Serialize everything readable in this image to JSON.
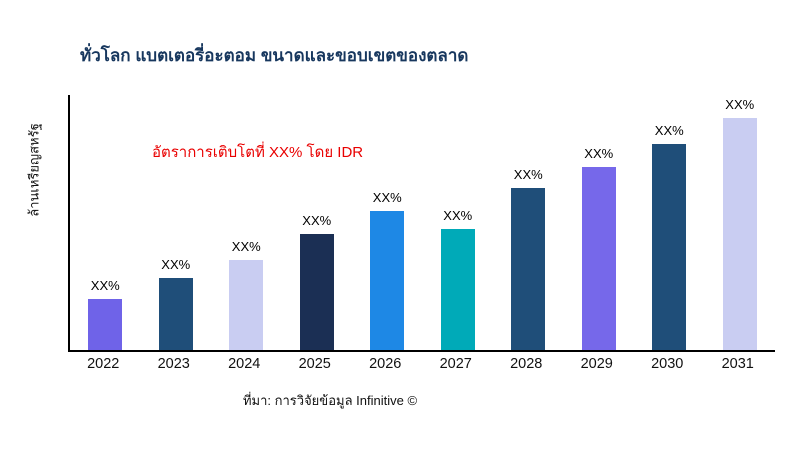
{
  "chart_data": {
    "type": "bar",
    "title": "ทั่วโลก แบตเตอรี่อะตอม ขนาดและขอบเขตของตลาด",
    "ylabel": "ล้านเหรียญสหรัฐ",
    "xlabel": "",
    "categories": [
      "2022",
      "2023",
      "2024",
      "2025",
      "2026",
      "2027",
      "2028",
      "2029",
      "2030",
      "2031"
    ],
    "values": [
      22,
      31,
      39,
      50,
      60,
      52,
      70,
      79,
      89,
      100
    ],
    "bar_labels": [
      "XX%",
      "XX%",
      "XX%",
      "XX%",
      "XX%",
      "XX%",
      "XX%",
      "XX%",
      "XX%",
      "XX%"
    ],
    "bar_colors": [
      "#6f63e8",
      "#1f4e79",
      "#c9cdf2",
      "#1b2f54",
      "#1e88e5",
      "#00aab8",
      "#1f4e79",
      "#7668ea",
      "#1f4e79",
      "#c9cdf2"
    ],
    "annotation": "อัตราการเติบโตที่ XX% โดย IDR",
    "source": "ที่มา: การวิจัยข้อมูล Infinitive ©",
    "ylim": [
      0,
      100
    ],
    "grid": false,
    "legend": false,
    "note": "values are relative estimates read from bar heights; data labels on chart show XX%",
    "colors": {
      "title": "#17375e",
      "annotation": "#e90000",
      "axis": "#000000"
    }
  }
}
